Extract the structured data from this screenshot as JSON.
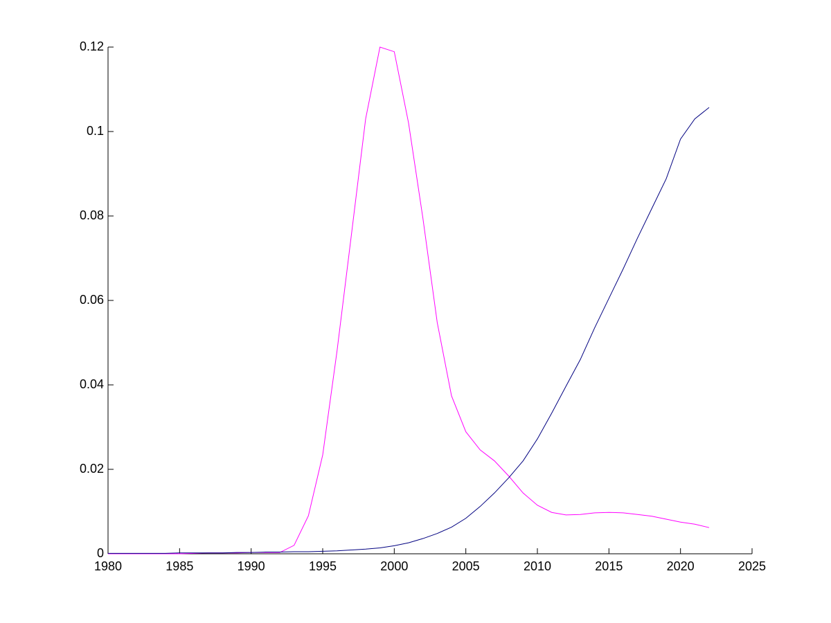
{
  "chart_data": {
    "type": "line",
    "x": [
      1980,
      1981,
      1982,
      1983,
      1984,
      1985,
      1986,
      1987,
      1988,
      1989,
      1990,
      1991,
      1992,
      1993,
      1994,
      1995,
      1996,
      1997,
      1998,
      1999,
      2000,
      2001,
      2002,
      2003,
      2004,
      2005,
      2006,
      2007,
      2008,
      2009,
      2010,
      2011,
      2012,
      2013,
      2014,
      2015,
      2016,
      2017,
      2018,
      2019,
      2020,
      2021,
      2022
    ],
    "series": [
      {
        "color": "#ff00ff",
        "values": [
          0,
          0,
          0,
          0,
          0,
          0,
          0.0001,
          0.0002,
          0.0002,
          0.0002,
          0.0003,
          0.0003,
          0.0003,
          0.002,
          0.009,
          0.0234,
          0.048,
          0.0754,
          0.103,
          0.12,
          0.1189,
          0.102,
          0.0795,
          0.0548,
          0.0374,
          0.0289,
          0.0246,
          0.022,
          0.0184,
          0.0144,
          0.0115,
          0.0098,
          0.0092,
          0.0093,
          0.0097,
          0.0098,
          0.0097,
          0.0093,
          0.0089,
          0.0082,
          0.0075,
          0.007,
          0.0062
        ]
      },
      {
        "color": "#000080",
        "values": [
          0.0001,
          0.0001,
          0.0001,
          0.0001,
          0.0001,
          0.0002,
          0.0002,
          0.0002,
          0.0002,
          0.0003,
          0.0003,
          0.0004,
          0.0004,
          0.0005,
          0.0005,
          0.0006,
          0.0007,
          0.0009,
          0.0011,
          0.0014,
          0.0019,
          0.0026,
          0.0036,
          0.0048,
          0.0063,
          0.0084,
          0.0112,
          0.0144,
          0.018,
          0.022,
          0.0272,
          0.0333,
          0.0397,
          0.046,
          0.0535,
          0.0605,
          0.0675,
          0.0748,
          0.0818,
          0.0888,
          0.0982,
          0.103,
          0.1057
        ]
      }
    ],
    "xlim": [
      1980,
      2025
    ],
    "xticks": [
      1980,
      1985,
      1990,
      1995,
      2000,
      2005,
      2010,
      2015,
      2020,
      2025
    ],
    "ylim": [
      0,
      0.12
    ],
    "yticks": [
      0,
      0.02,
      0.04,
      0.06,
      0.08,
      0.1,
      0.12
    ]
  }
}
